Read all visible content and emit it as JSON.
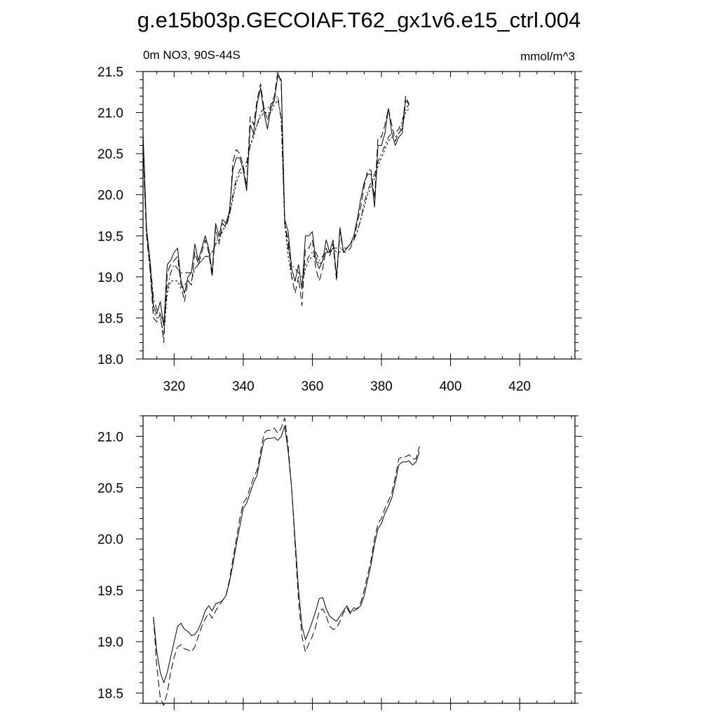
{
  "title": "g.e15b03p.GECOIAF.T62_gx1v6.e15_ctrl.004",
  "subtitle_left": "0m NO3, 90S-44S",
  "subtitle_right": "mmol/m^3",
  "chart_data": [
    {
      "type": "line",
      "xlim": [
        311,
        436
      ],
      "ylim": [
        18.0,
        21.5
      ],
      "x_ticks": [
        320,
        340,
        360,
        380,
        400,
        420
      ],
      "y_ticks": [
        18.0,
        18.5,
        19.0,
        19.5,
        20.0,
        20.5,
        21.0,
        21.5
      ],
      "y_tick_labels": [
        "18.0",
        "18.5",
        "19.0",
        "19.5",
        "20.0",
        "20.5",
        "21.0",
        "21.5"
      ],
      "x_tick_labels": [
        "320",
        "340",
        "360",
        "380",
        "400",
        "420"
      ],
      "x_start": 311,
      "grid": false,
      "series": [
        {
          "dash": "solid",
          "values": [
            20.75,
            19.6,
            19.2,
            18.65,
            18.55,
            18.7,
            18.4,
            19.15,
            19.2,
            19.3,
            19.35,
            18.95,
            18.8,
            19.0,
            19.05,
            19.4,
            19.2,
            19.35,
            19.5,
            19.35,
            19.05,
            19.65,
            19.5,
            19.7,
            19.65,
            19.8,
            20.3,
            20.45,
            20.45,
            20.3,
            20.05,
            20.85,
            20.75,
            21.1,
            21.3,
            21.0,
            20.8,
            21.05,
            21.15,
            21.45,
            21.4,
            19.7,
            19.55,
            19.1,
            18.95,
            19.15,
            18.85,
            19.5,
            19.5,
            19.55,
            19.2,
            19.1,
            19.2,
            19.45,
            19.3,
            19.45,
            19.0,
            19.6,
            19.3,
            19.35,
            19.4,
            19.5,
            19.7,
            19.95,
            20.15,
            20.25,
            20.25,
            19.85,
            20.6,
            20.6,
            20.75,
            21.05,
            20.75,
            20.6,
            20.7,
            20.75,
            21.15,
            21.1
          ]
        },
        {
          "dash": "long",
          "values": [
            20.55,
            19.5,
            19.1,
            18.5,
            18.45,
            18.55,
            18.2,
            19.05,
            19.15,
            19.2,
            19.25,
            18.9,
            18.7,
            18.95,
            18.9,
            19.3,
            19.15,
            19.3,
            19.45,
            19.3,
            19.0,
            19.6,
            19.4,
            19.65,
            19.6,
            19.75,
            20.4,
            20.55,
            20.5,
            20.35,
            20.1,
            20.95,
            20.85,
            21.15,
            21.35,
            21.05,
            20.9,
            21.1,
            21.2,
            21.5,
            21.35,
            19.65,
            19.45,
            19.0,
            18.8,
            19.0,
            18.65,
            19.35,
            19.35,
            19.45,
            19.1,
            18.95,
            19.1,
            19.35,
            19.25,
            19.4,
            18.95,
            19.55,
            19.3,
            19.3,
            19.35,
            19.45,
            19.65,
            19.85,
            20.1,
            20.3,
            20.3,
            19.95,
            20.7,
            20.7,
            20.85,
            21.05,
            20.85,
            20.65,
            20.75,
            20.8,
            21.2,
            21.1
          ]
        },
        {
          "dash": "dashdot",
          "values": [
            20.6,
            19.55,
            19.2,
            18.75,
            18.6,
            18.55,
            18.45,
            18.85,
            19.05,
            19.15,
            19.1,
            19.05,
            19.05,
            19.05,
            19.05,
            19.1,
            19.15,
            19.2,
            19.25,
            19.25,
            19.3,
            19.4,
            19.5,
            19.55,
            19.65,
            19.75,
            20.0,
            20.2,
            20.3,
            20.35,
            20.4,
            20.6,
            20.75,
            20.85,
            21.0,
            21.05,
            21.05,
            21.1,
            21.15,
            21.2,
            20.9,
            19.7,
            19.35,
            19.15,
            19.1,
            19.05,
            19.0,
            19.15,
            19.25,
            19.3,
            19.3,
            19.2,
            19.25,
            19.3,
            19.3,
            19.35,
            19.35,
            19.35,
            19.35,
            19.35,
            19.4,
            19.45,
            19.55,
            19.7,
            19.9,
            20.05,
            20.15,
            20.25,
            20.4,
            20.5,
            20.6,
            20.7,
            20.75,
            20.75,
            20.8,
            20.9,
            21.05,
            21.1
          ]
        },
        {
          "dash": "short",
          "values": [
            20.7,
            19.6,
            19.1,
            18.6,
            18.5,
            18.5,
            18.3,
            18.8,
            18.95,
            18.95,
            18.95,
            18.85,
            18.9,
            18.95,
            18.95,
            19.1,
            19.15,
            19.2,
            19.25,
            19.25,
            19.3,
            19.4,
            19.45,
            19.55,
            19.65,
            19.75,
            19.95,
            20.15,
            20.25,
            20.3,
            20.35,
            20.6,
            20.7,
            20.85,
            20.95,
            21.0,
            21.0,
            21.0,
            21.1,
            21.15,
            20.95,
            19.65,
            19.25,
            19.0,
            18.95,
            18.95,
            18.9,
            19.1,
            19.2,
            19.25,
            19.25,
            19.15,
            19.2,
            19.3,
            19.3,
            19.35,
            19.3,
            19.3,
            19.35,
            19.35,
            19.4,
            19.45,
            19.55,
            19.7,
            19.85,
            20.0,
            20.1,
            20.2,
            20.35,
            20.45,
            20.55,
            20.65,
            20.7,
            20.7,
            20.75,
            20.85,
            21.0,
            21.05
          ]
        }
      ]
    },
    {
      "type": "line",
      "xlim": [
        311,
        436
      ],
      "ylim": [
        18.4,
        21.2
      ],
      "x_ticks": [
        320,
        340,
        360,
        380,
        400,
        420
      ],
      "y_ticks": [
        18.5,
        19.0,
        19.5,
        20.0,
        20.5,
        21.0
      ],
      "y_tick_labels": [
        "18.5",
        "19.0",
        "19.5",
        "20.0",
        "20.5",
        "21.0"
      ],
      "x_start": 314,
      "grid": false,
      "series": [
        {
          "dash": "solid",
          "values": [
            19.24,
            18.9,
            18.7,
            18.6,
            18.7,
            18.85,
            19.0,
            19.15,
            19.18,
            19.12,
            19.1,
            19.06,
            19.07,
            19.12,
            19.2,
            19.3,
            19.35,
            19.3,
            19.37,
            19.38,
            19.4,
            19.45,
            19.58,
            19.75,
            19.95,
            20.12,
            20.3,
            20.35,
            20.45,
            20.55,
            20.62,
            20.8,
            20.96,
            20.98,
            20.98,
            20.99,
            20.96,
            21.0,
            21.1,
            20.85,
            20.5,
            20.0,
            19.5,
            19.15,
            19.02,
            19.1,
            19.2,
            19.3,
            19.42,
            19.43,
            19.32,
            19.25,
            19.22,
            19.2,
            19.25,
            19.3,
            19.35,
            19.28,
            19.33,
            19.32,
            19.35,
            19.45,
            19.6,
            19.75,
            19.95,
            20.1,
            20.15,
            20.25,
            20.32,
            20.4,
            20.55,
            20.72,
            20.75,
            20.75,
            20.76,
            20.72,
            20.75,
            20.85
          ]
        },
        {
          "dash": "long",
          "values": [
            19.24,
            18.75,
            18.45,
            18.38,
            18.5,
            18.7,
            18.85,
            18.95,
            18.97,
            18.93,
            18.92,
            18.9,
            18.95,
            19.05,
            19.15,
            19.22,
            19.28,
            19.23,
            19.3,
            19.35,
            19.4,
            19.45,
            19.6,
            19.8,
            20.0,
            20.2,
            20.35,
            20.4,
            20.5,
            20.6,
            20.67,
            20.85,
            21.03,
            21.06,
            21.06,
            21.08,
            21.03,
            21.08,
            21.18,
            20.9,
            20.5,
            19.95,
            19.4,
            19.05,
            18.9,
            18.98,
            19.05,
            19.15,
            19.3,
            19.32,
            19.25,
            19.15,
            19.12,
            19.13,
            19.2,
            19.28,
            19.33,
            19.27,
            19.3,
            19.32,
            19.38,
            19.5,
            19.65,
            19.8,
            20.0,
            20.15,
            20.2,
            20.3,
            20.37,
            20.45,
            20.6,
            20.78,
            20.8,
            20.8,
            20.82,
            20.78,
            20.78,
            20.9
          ]
        }
      ]
    }
  ]
}
